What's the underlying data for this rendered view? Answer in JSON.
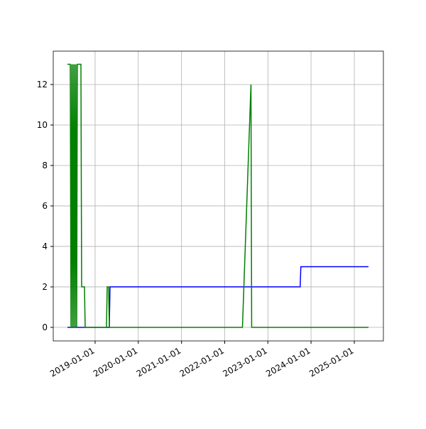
{
  "chart_data": {
    "type": "line",
    "xlim": [
      "2018-01-12",
      "2025-09-04"
    ],
    "xticks": [
      "2019-01-01",
      "2020-01-01",
      "2021-01-01",
      "2022-01-01",
      "2023-01-01",
      "2024-01-01",
      "2025-01-01"
    ],
    "ylim": [
      -0.67,
      13.65
    ],
    "yticks": [
      0,
      2,
      4,
      6,
      8,
      10,
      12
    ],
    "grid": true,
    "series": [
      {
        "color": "#0000ff",
        "x": [
          "2018-05-12",
          "2019-05-01",
          "2019-05-07",
          "2023-10-01",
          "2023-10-07",
          "2025-05-01"
        ],
        "values": [
          0,
          0,
          2,
          2,
          3,
          3
        ]
      },
      {
        "color": "#008000",
        "x": [
          "2018-05-12",
          "2018-06-05",
          "2018-06-11",
          "2018-06-17",
          "2018-06-23",
          "2018-06-29",
          "2018-07-05",
          "2018-07-11",
          "2018-07-17",
          "2018-07-23",
          "2018-07-29",
          "2018-08-04",
          "2018-09-03",
          "2018-09-09",
          "2018-10-03",
          "2018-10-09",
          "2019-04-07",
          "2019-04-13",
          "2019-04-25",
          "2019-05-01",
          "2022-05-31",
          "2022-08-11",
          "2022-08-17",
          "2025-05-01"
        ],
        "values": [
          13,
          13,
          0,
          13,
          0,
          13,
          0,
          13,
          0,
          13,
          0,
          13,
          13,
          2,
          2,
          0,
          0,
          2,
          2,
          0,
          0,
          12,
          0,
          0
        ]
      }
    ]
  }
}
